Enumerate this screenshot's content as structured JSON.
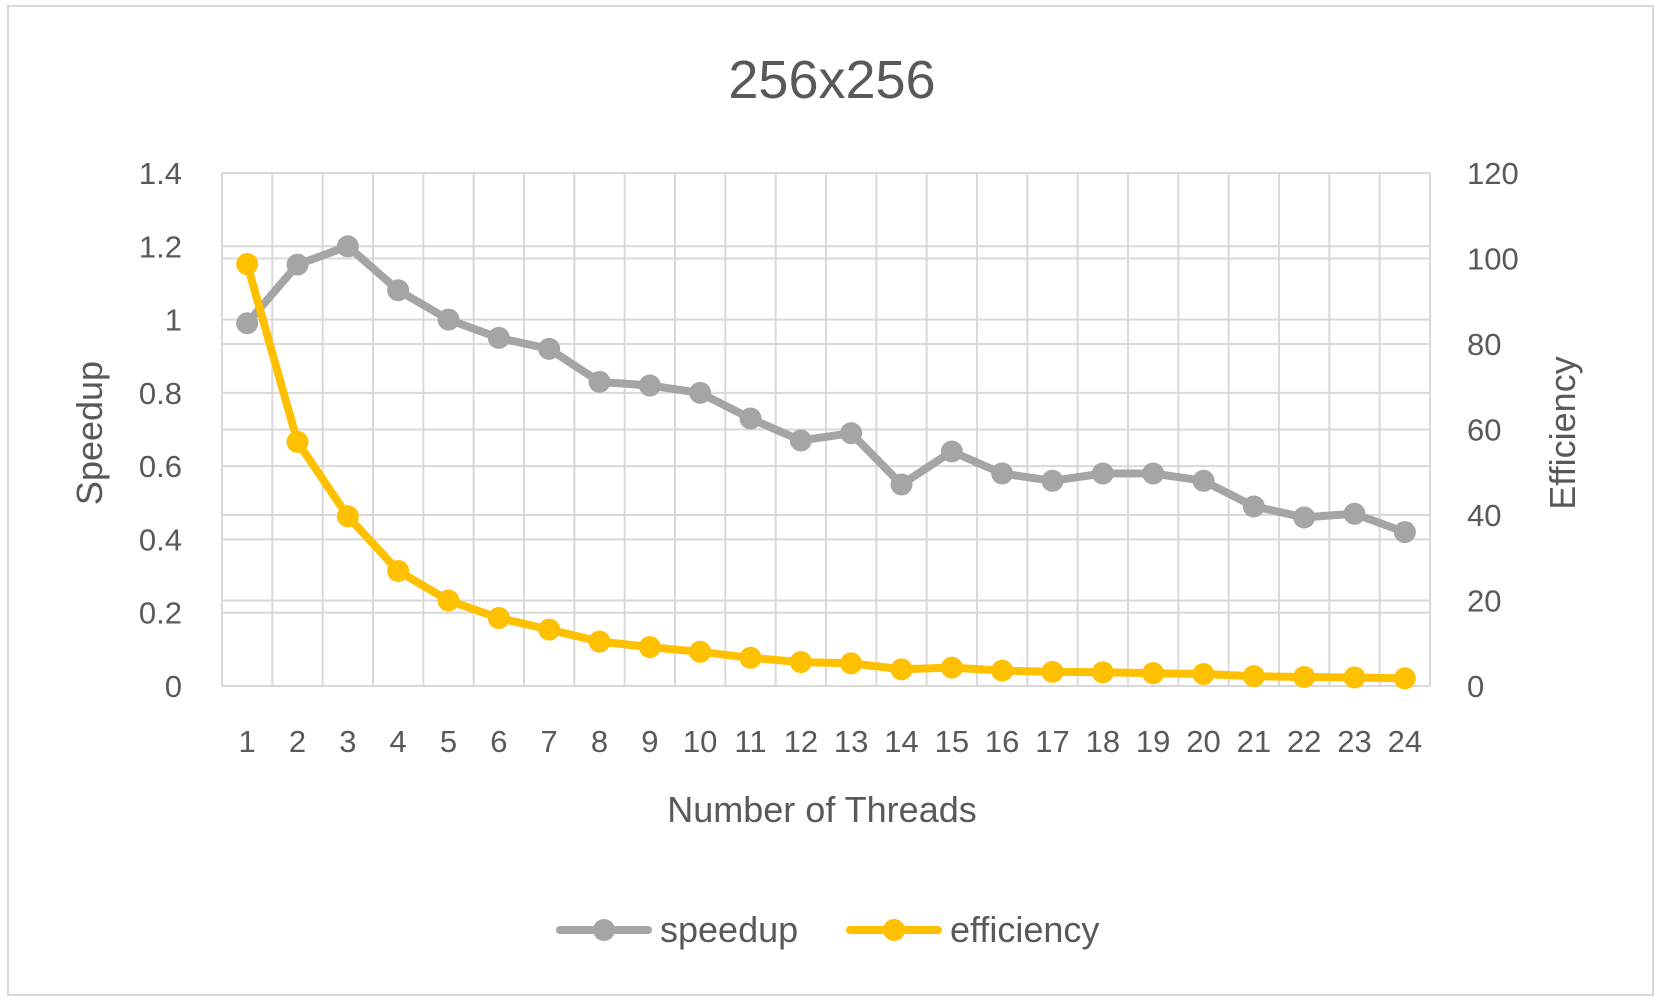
{
  "chart_data": {
    "type": "line",
    "title": "256x256",
    "xlabel": "Number of Threads",
    "ylabel": "Speedup",
    "y2label": "Efficiency",
    "categories": [
      "1",
      "2",
      "3",
      "4",
      "5",
      "6",
      "7",
      "8",
      "9",
      "10",
      "11",
      "12",
      "13",
      "14",
      "15",
      "16",
      "17",
      "18",
      "19",
      "20",
      "21",
      "22",
      "23",
      "24"
    ],
    "ylim": [
      0,
      1.4
    ],
    "yticks": [
      "0",
      "0.2",
      "0.4",
      "0.6",
      "0.8",
      "1",
      "1.2",
      "1.4"
    ],
    "y2lim": [
      0,
      120
    ],
    "y2ticks": [
      "0",
      "20",
      "40",
      "60",
      "80",
      "100",
      "120"
    ],
    "grid": true,
    "legend_position": "bottom",
    "series": [
      {
        "name": "speedup",
        "axis": "left",
        "color": "#a5a5a5",
        "values": [
          0.99,
          1.15,
          1.2,
          1.08,
          1.0,
          0.95,
          0.92,
          0.83,
          0.82,
          0.8,
          0.73,
          0.67,
          0.69,
          0.55,
          0.64,
          0.58,
          0.56,
          0.58,
          0.58,
          0.56,
          0.49,
          0.46,
          0.47,
          0.42
        ]
      },
      {
        "name": "efficiency",
        "axis": "right",
        "color": "#ffc000",
        "values": [
          98.7,
          57.1,
          39.7,
          26.9,
          20.0,
          15.9,
          13.2,
          10.4,
          9.1,
          8.0,
          6.6,
          5.6,
          5.3,
          3.9,
          4.3,
          3.6,
          3.3,
          3.2,
          3.0,
          2.8,
          2.3,
          2.1,
          2.0,
          1.8
        ]
      }
    ]
  }
}
